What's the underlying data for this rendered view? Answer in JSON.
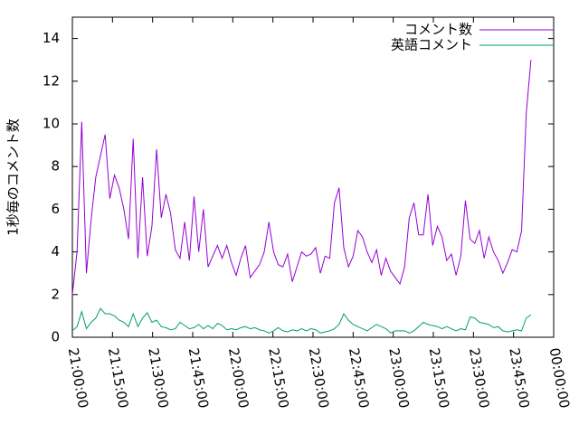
{
  "chart_data": {
    "type": "line",
    "y_label": "1秒毎のコメント数",
    "x": [
      0,
      1.75,
      3.5,
      5.25,
      7,
      8.75,
      10.5,
      12.25,
      14,
      15.75,
      17.5,
      19.25,
      21,
      22.75,
      24.5,
      26.25,
      28,
      29.75,
      31.5,
      33.25,
      35,
      36.75,
      38.5,
      40.25,
      42,
      43.75,
      45.5,
      47.25,
      49,
      50.75,
      52.5,
      54.25,
      56,
      57.75,
      59.5,
      61.25,
      63,
      64.75,
      66.5,
      68.25,
      70,
      71.75,
      73.5,
      75.25,
      77,
      78.75,
      80.5,
      82.25,
      84,
      85.75,
      87.5,
      89.25,
      91,
      92.75,
      94.5,
      96.25,
      98,
      99.75,
      101.5,
      103.25,
      105,
      106.75,
      108.5,
      110.25,
      112,
      113.75,
      115.5,
      117.25,
      119,
      120.75,
      122.5,
      124.25,
      126,
      127.75,
      129.5,
      131.25,
      133,
      134.75,
      136.5,
      138.25,
      140,
      141.75,
      143.5,
      145.25,
      147,
      148.75,
      150.5,
      152.25,
      154,
      155.75,
      157.5,
      159.25,
      161,
      162.75,
      164.5,
      166.25,
      168,
      169.75,
      171.5
    ],
    "series": [
      {
        "name": "コメント数",
        "color": "#9400d3",
        "values": [
          2,
          4,
          10.1,
          3,
          5.5,
          7.5,
          8.5,
          9.5,
          6.5,
          7.6,
          7,
          6,
          4.6,
          9.3,
          3.7,
          7.5,
          3.8,
          5.2,
          8.8,
          5.6,
          6.7,
          5.8,
          4.1,
          3.7,
          5.4,
          3.6,
          6.6,
          4,
          6,
          3.3,
          3.8,
          4.3,
          3.7,
          4.3,
          3.5,
          2.9,
          3.7,
          4.3,
          2.8,
          3.1,
          3.4,
          4,
          5.4,
          4,
          3.4,
          3.3,
          3.9,
          2.6,
          3.3,
          4,
          3.8,
          3.9,
          4.2,
          3,
          3.8,
          3.7,
          6.3,
          7,
          4.2,
          3.3,
          3.8,
          5,
          4.7,
          4,
          3.5,
          4.1,
          2.9,
          3.7,
          3.1,
          2.8,
          2.5,
          3.3,
          5.6,
          6.3,
          4.8,
          4.8,
          6.7,
          4.3,
          5.2,
          4.7,
          3.6,
          3.9,
          2.9,
          3.8,
          6.4,
          4.6,
          4.4,
          5,
          3.7,
          4.7,
          4,
          3.6,
          3,
          3.5,
          4.1,
          4,
          5,
          10.5,
          13
        ]
      },
      {
        "name": "英語コメント",
        "color": "#009e73",
        "values": [
          0.3,
          0.5,
          1.2,
          0.4,
          0.7,
          0.9,
          1.35,
          1.1,
          1.1,
          1.0,
          0.8,
          0.7,
          0.5,
          1.1,
          0.5,
          0.9,
          1.15,
          0.7,
          0.8,
          0.5,
          0.45,
          0.35,
          0.4,
          0.7,
          0.55,
          0.4,
          0.45,
          0.6,
          0.4,
          0.55,
          0.4,
          0.65,
          0.55,
          0.35,
          0.4,
          0.35,
          0.45,
          0.5,
          0.4,
          0.45,
          0.35,
          0.3,
          0.2,
          0.3,
          0.45,
          0.3,
          0.25,
          0.35,
          0.3,
          0.4,
          0.3,
          0.4,
          0.35,
          0.2,
          0.25,
          0.3,
          0.4,
          0.6,
          1.1,
          0.8,
          0.6,
          0.5,
          0.4,
          0.3,
          0.45,
          0.6,
          0.5,
          0.4,
          0.2,
          0.3,
          0.3,
          0.3,
          0.2,
          0.3,
          0.5,
          0.7,
          0.6,
          0.55,
          0.5,
          0.4,
          0.5,
          0.4,
          0.3,
          0.4,
          0.35,
          0.95,
          0.9,
          0.7,
          0.65,
          0.6,
          0.45,
          0.5,
          0.3,
          0.25,
          0.3,
          0.35,
          0.3,
          0.9,
          1.05
        ]
      }
    ],
    "xlim": [
      0,
      180
    ],
    "xticks": [
      {
        "value": 0,
        "label": "21:00:00"
      },
      {
        "value": 15,
        "label": "21:15:00"
      },
      {
        "value": 30,
        "label": "21:30:00"
      },
      {
        "value": 45,
        "label": "21:45:00"
      },
      {
        "value": 60,
        "label": "22:00:00"
      },
      {
        "value": 75,
        "label": "22:15:00"
      },
      {
        "value": 90,
        "label": "22:30:00"
      },
      {
        "value": 105,
        "label": "22:45:00"
      },
      {
        "value": 120,
        "label": "23:00:00"
      },
      {
        "value": 135,
        "label": "23:15:00"
      },
      {
        "value": 150,
        "label": "23:30:00"
      },
      {
        "value": 165,
        "label": "23:45:00"
      },
      {
        "value": 180,
        "label": "00:00:00"
      }
    ],
    "ylim": [
      0,
      15
    ],
    "yticks": [
      0,
      2,
      4,
      6,
      8,
      10,
      12,
      14
    ],
    "legend": "top-right"
  }
}
